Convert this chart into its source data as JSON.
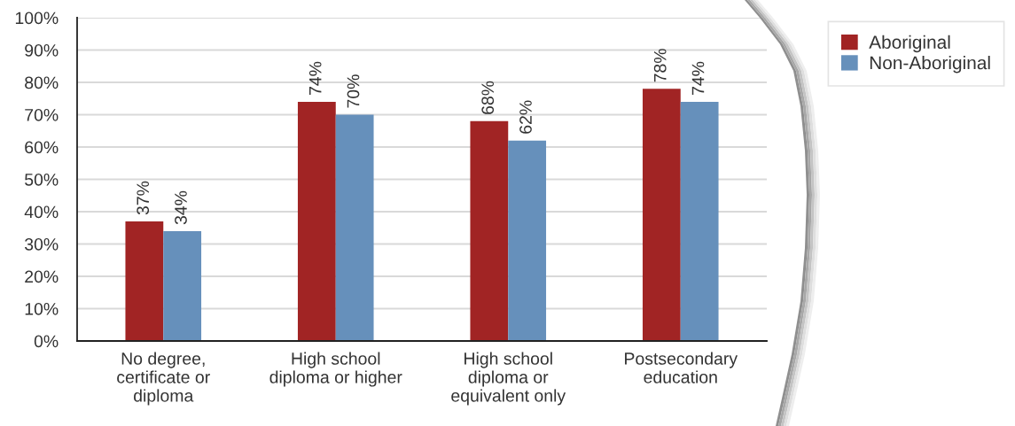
{
  "chart_data": {
    "type": "bar",
    "categories": [
      "No degree,\ncertificate or\ndiploma",
      "High school\ndiploma or higher",
      "High school\ndiploma or\nequivalent only",
      "Postsecondary\neducation"
    ],
    "series": [
      {
        "name": "Aboriginal",
        "color": "#a12424",
        "values": [
          37,
          74,
          68,
          78
        ],
        "value_labels": [
          "37%",
          "74%",
          "68%",
          "78%"
        ]
      },
      {
        "name": "Non-Aboriginal",
        "color": "#6690bb",
        "values": [
          34,
          70,
          62,
          74
        ],
        "value_labels": [
          "34%",
          "70%",
          "62%",
          "74%"
        ]
      }
    ],
    "ylim": [
      0,
      100
    ],
    "yticks": [
      {
        "value": 0,
        "label": "0%"
      },
      {
        "value": 10,
        "label": "10%"
      },
      {
        "value": 20,
        "label": "20%"
      },
      {
        "value": 30,
        "label": "30%"
      },
      {
        "value": 40,
        "label": "40%"
      },
      {
        "value": 50,
        "label": "50%"
      },
      {
        "value": 60,
        "label": "60%"
      },
      {
        "value": 70,
        "label": "70%"
      },
      {
        "value": 80,
        "label": "80%"
      },
      {
        "value": 90,
        "label": "90%"
      },
      {
        "value": 100,
        "label": "100%"
      }
    ],
    "grid": "y",
    "legend": "top right"
  }
}
